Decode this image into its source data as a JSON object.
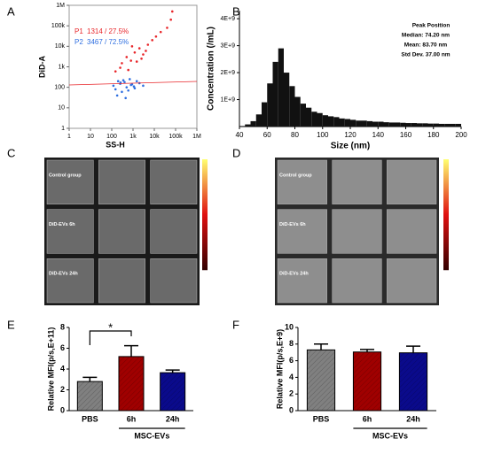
{
  "panels": [
    "A",
    "B",
    "C",
    "D",
    "E",
    "F"
  ],
  "images": [
    {
      "labels": [
        "Control group",
        "DiD-EVs 6h",
        "DiD-EVs 24h"
      ]
    },
    {
      "labels": [
        "Control group",
        "DiD-EVs 6h",
        "DiD-EVs 24h"
      ]
    }
  ],
  "chart_data": [
    {
      "type": "scatter",
      "xlabel": "SS-H",
      "ylabel": "DiD-A",
      "xlog": true,
      "ylog": true,
      "xlim": [
        1,
        1000000
      ],
      "ylim": [
        1,
        1000000
      ],
      "xticks": [
        1,
        10,
        100,
        {
          "value": 1000,
          "label": "1k"
        },
        {
          "value": 10000,
          "label": "10k"
        },
        {
          "value": 100000,
          "label": "100k"
        },
        {
          "value": 1000000,
          "label": "1M"
        }
      ],
      "yticks": [
        1,
        10,
        100,
        {
          "value": 1000,
          "label": "1k"
        },
        {
          "value": 10000,
          "label": "10k"
        },
        {
          "value": 100000,
          "label": "100k"
        },
        {
          "value": 1000000,
          "label": "1M"
        }
      ],
      "series": [
        {
          "name": "P1",
          "count_label": "1314 / 27.5%",
          "color": "#e8262a",
          "x": [
            150,
            300,
            500,
            800,
            1200,
            2000,
            3000,
            5000,
            8000,
            12000,
            20000,
            40000,
            60000,
            70000,
            250,
            600,
            1500,
            4000,
            900,
            2500
          ],
          "values": [
            600,
            1500,
            3000,
            2000,
            5000,
            8000,
            4000,
            12000,
            20000,
            30000,
            50000,
            80000,
            200000,
            500000,
            900,
            700,
            1800,
            6000,
            10000,
            2500
          ]
        },
        {
          "name": "P2",
          "count_label": "3467 / 72.5%",
          "color": "#2f6fe0",
          "x": [
            120,
            150,
            200,
            250,
            300,
            400,
            500,
            700,
            900,
            1200,
            1500,
            2000,
            3000,
            180,
            350,
            600,
            800,
            1100,
            450,
            260
          ],
          "values": [
            120,
            80,
            200,
            150,
            60,
            180,
            100,
            250,
            140,
            90,
            200,
            160,
            120,
            40,
            220,
            70,
            130,
            110,
            30,
            170
          ]
        }
      ]
    },
    {
      "type": "histogram",
      "xlabel": "Size (nm)",
      "ylabel": "Concentration (/mL)",
      "color": "#111111",
      "annotations": [
        "Peak Position",
        "Median: 74.20 nm",
        "Mean: 83.70 nm",
        "Std Dev. 37.00 nm"
      ],
      "bins": [
        40,
        44,
        48,
        52,
        56,
        60,
        64,
        68,
        72,
        76,
        80,
        84,
        88,
        92,
        96,
        100,
        104,
        108,
        112,
        116,
        120,
        124,
        128,
        132,
        136,
        140,
        144,
        148,
        152,
        156,
        160,
        164,
        168,
        172,
        176,
        180,
        184,
        188,
        192,
        196,
        200
      ],
      "values": [
        20000000.0,
        80000000.0,
        200000000.0,
        450000000.0,
        900000000.0,
        1600000000.0,
        2400000000.0,
        2900000000.0,
        2000000000.0,
        1500000000.0,
        1100000000.0,
        850000000.0,
        700000000.0,
        550000000.0,
        500000000.0,
        420000000.0,
        380000000.0,
        350000000.0,
        300000000.0,
        280000000.0,
        250000000.0,
        220000000.0,
        220000000.0,
        200000000.0,
        180000000.0,
        180000000.0,
        160000000.0,
        150000000.0,
        150000000.0,
        140000000.0,
        130000000.0,
        130000000.0,
        120000000.0,
        120000000.0,
        110000000.0,
        110000000.0,
        100000000.0,
        100000000.0,
        100000000.0,
        100000000.0
      ],
      "xlim": [
        40,
        200
      ],
      "xticks": [
        40,
        60,
        80,
        100,
        120,
        140,
        160,
        180,
        200
      ],
      "ylim": [
        0,
        4300000000
      ],
      "yticks": [
        {
          "value": 1000000000,
          "label": "1E+9"
        },
        {
          "value": 2000000000,
          "label": "2E+9"
        },
        {
          "value": 3000000000,
          "label": "3E+9"
        },
        {
          "value": 4000000000,
          "label": "4E+9"
        }
      ]
    },
    {
      "type": "bar",
      "ylabel": "Relative MFI(p/s,E+11)",
      "categories": [
        "PBS",
        "6h",
        "24h"
      ],
      "group_label": "MSC-EVs",
      "values": [
        2.8,
        5.2,
        3.65
      ],
      "errors": [
        0.4,
        1.05,
        0.25
      ],
      "colors": [
        "#808080",
        "#a00000",
        "#0a0a8c"
      ],
      "ylim": [
        0,
        8
      ],
      "yticks": [
        0,
        2,
        4,
        6,
        8
      ],
      "significance": "*"
    },
    {
      "type": "bar",
      "ylabel": "Relative MFI(p/s,E+9)",
      "categories": [
        "PBS",
        "6h",
        "24h"
      ],
      "group_label": "MSC-EVs",
      "values": [
        7.3,
        7.05,
        6.95
      ],
      "errors": [
        0.7,
        0.3,
        0.8
      ],
      "colors": [
        "#808080",
        "#a00000",
        "#0a0a8c"
      ],
      "ylim": [
        0,
        10
      ],
      "yticks": [
        0,
        2,
        4,
        6,
        8,
        10
      ]
    }
  ]
}
